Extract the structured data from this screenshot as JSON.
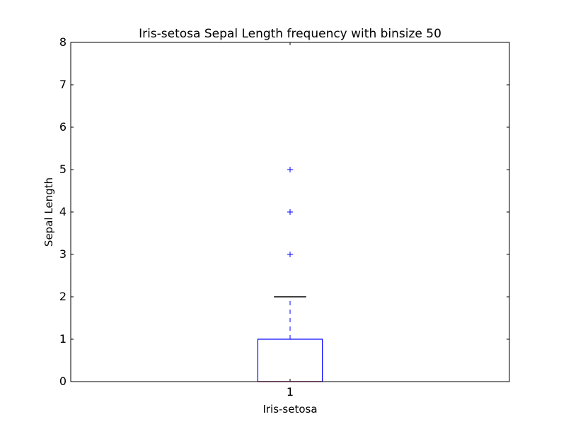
{
  "chart_data": {
    "type": "box",
    "title": "Iris-setosa Sepal Length frequency with binsize 50",
    "xlabel": "Iris-setosa",
    "ylabel": "Sepal Length",
    "ylim": [
      0,
      8
    ],
    "yticks": [
      "0",
      "1",
      "2",
      "3",
      "4",
      "5",
      "6",
      "7",
      "8"
    ],
    "categories": [
      "1"
    ],
    "boxes": [
      {
        "category": "1",
        "whisker_low": 0,
        "q1": 0,
        "median": 0,
        "q3": 1,
        "whisker_high": 2,
        "outliers": [
          3,
          4,
          5
        ]
      }
    ],
    "grid": false,
    "legend": "none",
    "colors": {
      "box": "#0000ff",
      "whisker": "#0000ff",
      "cap": "#000000",
      "median": "#ff0000",
      "flier": "#0000ff"
    }
  }
}
